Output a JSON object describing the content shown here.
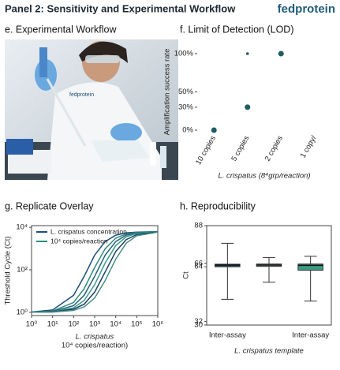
{
  "header": {
    "title": "Panel 2: Sensitivity and Experimental Workflow",
    "brand": "fedprotein"
  },
  "photo_panel": {
    "title": "e. Experimental Workflow",
    "label": "fedprotein"
  },
  "chart_data": [
    {
      "type": "scatter",
      "title": "f. Limit of Detection (LOD)",
      "categories": [
        "10 copies",
        "5 copies",
        "2 copies",
        "1 copy/"
      ],
      "series": [
        {
          "color": "#1f5c63",
          "values": [
            0,
            30,
            100,
            null
          ]
        },
        {
          "color": "#1f5c63",
          "values": [
            null,
            100,
            null,
            null
          ]
        }
      ],
      "ylim": [
        0,
        100
      ],
      "yticks": [
        {
          "value": 0,
          "label": "0%"
        },
        {
          "value": 30,
          "label": "30%"
        },
        {
          "value": 50,
          "label": "50%"
        },
        {
          "value": 100,
          "label": "100%"
        }
      ],
      "y_label": "Amplification success rate",
      "x_label": "L. crispatus (8⁴grp/reaction)"
    },
    {
      "type": "line",
      "title": "g. Replicate Overlay",
      "log_x": true,
      "log_y": true,
      "x": [
        1,
        10,
        100,
        316,
        1000,
        3162,
        10000,
        31623,
        100000,
        1000000
      ],
      "series": [
        {
          "name": "L. crispatus concentration",
          "color": "#1f4e79",
          "values": [
            1.03,
            1.28,
            6.3,
            49,
            490,
            2140,
            4270,
            5500,
            5960,
            6250
          ]
        },
        {
          "name": "10⁴ copies/reaction",
          "color": "#2e8b7a",
          "values": [
            1.01,
            1.14,
            2.9,
            13,
            129,
            977,
            3090,
            4850,
            5750,
            6170
          ]
        },
        {
          "color": "#24617a",
          "values": [
            1.01,
            1.09,
            2.04,
            6.3,
            49,
            490,
            2140,
            4270,
            5500,
            6150
          ]
        },
        {
          "color": "#3c9c88",
          "values": [
            1.0,
            1.06,
            1.6,
            3.6,
            20,
            209,
            1380,
            3550,
            5130,
            6100
          ]
        },
        {
          "color": "#1a3f66",
          "values": [
            1.0,
            1.04,
            1.4,
            2.4,
            8.9,
            79,
            724,
            2630,
            4570,
            6030
          ]
        },
        {
          "color": "#4a8f84",
          "values": [
            1.0,
            1.02,
            1.22,
            1.79,
            4.7,
            31,
            316,
            1780,
            3980,
            5890
          ]
        }
      ],
      "xlim": [
        1,
        1000000
      ],
      "xticks": [
        {
          "value": 1,
          "label": "10⁰"
        },
        {
          "value": 10,
          "label": "10¹"
        },
        {
          "value": 100,
          "label": "10²"
        },
        {
          "value": 1000,
          "label": "10³"
        },
        {
          "value": 10000,
          "label": "10⁴"
        },
        {
          "value": 100000,
          "label": "10⁵"
        },
        {
          "value": 1000000,
          "label": "10⁶"
        }
      ],
      "ylim": [
        0.7,
        12000
      ],
      "yticks": [
        {
          "value": 1,
          "label": "10⁰"
        },
        {
          "value": 100,
          "label": "10²"
        },
        {
          "value": 10000,
          "label": "10⁴"
        }
      ],
      "y_label": "Threshold Cycle (Ct)",
      "x_label": [
        "L. crispatus",
        "10⁴ copies/reaction)"
      ]
    },
    {
      "type": "box",
      "title": "h. Reproducibility",
      "categories": [
        "Inter-assay",
        null,
        "Inter-assay"
      ],
      "boxes": [
        {
          "color": "#1d4e6b",
          "min": 45,
          "q1": 64,
          "median": 65,
          "q3": 65.5,
          "max": 77.7
        },
        {
          "color": "#8a9aa0",
          "min": 55,
          "q1": 64.2,
          "median": 65,
          "q3": 65.6,
          "max": 69.4
        },
        {
          "color": "#3e9a82",
          "min": 44,
          "q1": 62,
          "median": 64.8,
          "q3": 65.6,
          "max": 70.1
        }
      ],
      "ylim": [
        30,
        88
      ],
      "yticks": [
        30,
        32,
        64,
        66,
        88
      ],
      "y_label": "Ct",
      "x_label": "L. crispatus template"
    }
  ]
}
